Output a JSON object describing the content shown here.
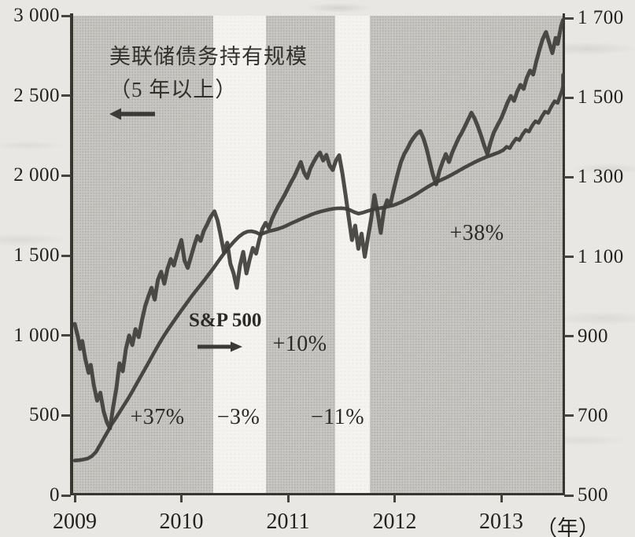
{
  "chart_data": {
    "type": "line",
    "title_annotation": {
      "line1": "美联储债务持有规模",
      "line2": "（5 年以上）"
    },
    "sp_label": "S&P 500",
    "x_axis": {
      "tick_values": [
        2009,
        2010,
        2011,
        2012,
        2013
      ],
      "tick_labels": [
        "2009",
        "2010",
        "2011",
        "2012",
        "2013"
      ],
      "unit_label": "（年）",
      "range": [
        2009,
        2013.6
      ]
    },
    "left_axis": {
      "tick_values": [
        3000,
        2500,
        2000,
        1500,
        1000,
        500,
        0
      ],
      "tick_labels": [
        "3 000",
        "2 500",
        "2 000",
        "1 500",
        "1 000",
        "500",
        "0"
      ],
      "range": [
        0,
        3000
      ]
    },
    "right_axis": {
      "tick_values": [
        1700,
        1500,
        1300,
        1100,
        900,
        700,
        500
      ],
      "tick_labels": [
        "1 700",
        "1 500",
        "1 300",
        "1 100",
        "900",
        "700",
        "500"
      ],
      "range": [
        500,
        1700
      ]
    },
    "white_gap_bands": [
      [
        2010.3,
        2010.79
      ],
      [
        2011.44,
        2011.77
      ]
    ],
    "annotations": {
      "qe1": "+37%",
      "gap1": "−3%",
      "qe2": "+10%",
      "gap2": "−11%",
      "qe3": "+38%"
    },
    "colors": {
      "line": "#3f3e3b",
      "band_gray": "#c8c7c3",
      "band_white": "#f4f3ef",
      "page_bg": "#e8e7e3",
      "ink": "#232220"
    },
    "series": [
      {
        "id": "fed",
        "name": "美联储债务持有规模（5年以上）",
        "axis": "left",
        "points": [
          [
            2009.0,
            218
          ],
          [
            2009.04,
            220
          ],
          [
            2009.08,
            224
          ],
          [
            2009.12,
            230
          ],
          [
            2009.16,
            245
          ],
          [
            2009.2,
            272
          ],
          [
            2009.24,
            318
          ],
          [
            2009.28,
            365
          ],
          [
            2009.31,
            400
          ],
          [
            2009.34,
            438
          ],
          [
            2009.38,
            478
          ],
          [
            2009.42,
            520
          ],
          [
            2009.46,
            562
          ],
          [
            2009.5,
            605
          ],
          [
            2009.54,
            650
          ],
          [
            2009.58,
            698
          ],
          [
            2009.62,
            745
          ],
          [
            2009.66,
            792
          ],
          [
            2009.7,
            840
          ],
          [
            2009.74,
            888
          ],
          [
            2009.78,
            935
          ],
          [
            2009.82,
            980
          ],
          [
            2009.86,
            1022
          ],
          [
            2009.9,
            1062
          ],
          [
            2009.94,
            1100
          ],
          [
            2009.98,
            1138
          ],
          [
            2010.02,
            1175
          ],
          [
            2010.06,
            1212
          ],
          [
            2010.1,
            1248
          ],
          [
            2010.14,
            1283
          ],
          [
            2010.18,
            1316
          ],
          [
            2010.22,
            1350
          ],
          [
            2010.26,
            1385
          ],
          [
            2010.3,
            1420
          ],
          [
            2010.34,
            1458
          ],
          [
            2010.38,
            1495
          ],
          [
            2010.42,
            1530
          ],
          [
            2010.46,
            1562
          ],
          [
            2010.5,
            1592
          ],
          [
            2010.54,
            1618
          ],
          [
            2010.58,
            1638
          ],
          [
            2010.62,
            1650
          ],
          [
            2010.66,
            1652
          ],
          [
            2010.7,
            1645
          ],
          [
            2010.74,
            1632
          ],
          [
            2010.78,
            1642
          ],
          [
            2010.82,
            1652
          ],
          [
            2010.86,
            1658
          ],
          [
            2010.9,
            1665
          ],
          [
            2010.94,
            1674
          ],
          [
            2010.98,
            1685
          ],
          [
            2011.02,
            1698
          ],
          [
            2011.06,
            1710
          ],
          [
            2011.1,
            1722
          ],
          [
            2011.14,
            1734
          ],
          [
            2011.18,
            1745
          ],
          [
            2011.22,
            1756
          ],
          [
            2011.26,
            1766
          ],
          [
            2011.3,
            1774
          ],
          [
            2011.34,
            1781
          ],
          [
            2011.38,
            1787
          ],
          [
            2011.42,
            1792
          ],
          [
            2011.46,
            1795
          ],
          [
            2011.5,
            1796
          ],
          [
            2011.54,
            1793
          ],
          [
            2011.58,
            1785
          ],
          [
            2011.62,
            1772
          ],
          [
            2011.66,
            1762
          ],
          [
            2011.7,
            1768
          ],
          [
            2011.74,
            1777
          ],
          [
            2011.78,
            1785
          ],
          [
            2011.82,
            1791
          ],
          [
            2011.86,
            1796
          ],
          [
            2011.9,
            1801
          ],
          [
            2011.94,
            1807
          ],
          [
            2011.98,
            1813
          ],
          [
            2012.02,
            1822
          ],
          [
            2012.06,
            1833
          ],
          [
            2012.1,
            1846
          ],
          [
            2012.14,
            1860
          ],
          [
            2012.18,
            1875
          ],
          [
            2012.22,
            1891
          ],
          [
            2012.26,
            1908
          ],
          [
            2012.3,
            1925
          ],
          [
            2012.34,
            1941
          ],
          [
            2012.38,
            1955
          ],
          [
            2012.42,
            1968
          ],
          [
            2012.46,
            1980
          ],
          [
            2012.5,
            1993
          ],
          [
            2012.54,
            2007
          ],
          [
            2012.58,
            2022
          ],
          [
            2012.62,
            2037
          ],
          [
            2012.66,
            2052
          ],
          [
            2012.7,
            2066
          ],
          [
            2012.74,
            2080
          ],
          [
            2012.78,
            2093
          ],
          [
            2012.82,
            2105
          ],
          [
            2012.86,
            2116
          ],
          [
            2012.9,
            2126
          ],
          [
            2012.94,
            2136
          ],
          [
            2012.98,
            2146
          ],
          [
            2013.02,
            2160
          ],
          [
            2013.05,
            2180
          ],
          [
            2013.08,
            2172
          ],
          [
            2013.11,
            2205
          ],
          [
            2013.14,
            2232
          ],
          [
            2013.17,
            2222
          ],
          [
            2013.2,
            2258
          ],
          [
            2013.23,
            2285
          ],
          [
            2013.26,
            2275
          ],
          [
            2013.29,
            2312
          ],
          [
            2013.32,
            2340
          ],
          [
            2013.35,
            2330
          ],
          [
            2013.38,
            2368
          ],
          [
            2013.41,
            2400
          ],
          [
            2013.44,
            2392
          ],
          [
            2013.47,
            2432
          ],
          [
            2013.5,
            2465
          ],
          [
            2013.53,
            2455
          ],
          [
            2013.55,
            2495
          ],
          [
            2013.57,
            2530
          ],
          [
            2013.59,
            2560
          ],
          [
            2013.6,
            2630
          ]
        ]
      },
      {
        "id": "sp500",
        "name": "S&P 500",
        "axis": "right",
        "points": [
          [
            2009.0,
            931
          ],
          [
            2009.03,
            898
          ],
          [
            2009.05,
            868
          ],
          [
            2009.07,
            888
          ],
          [
            2009.1,
            842
          ],
          [
            2009.13,
            808
          ],
          [
            2009.15,
            828
          ],
          [
            2009.18,
            775
          ],
          [
            2009.21,
            738
          ],
          [
            2009.24,
            758
          ],
          [
            2009.27,
            712
          ],
          [
            2009.3,
            685
          ],
          [
            2009.33,
            668
          ],
          [
            2009.36,
            722
          ],
          [
            2009.39,
            768
          ],
          [
            2009.42,
            832
          ],
          [
            2009.45,
            812
          ],
          [
            2009.48,
            868
          ],
          [
            2009.51,
            902
          ],
          [
            2009.54,
            878
          ],
          [
            2009.57,
            918
          ],
          [
            2009.6,
            898
          ],
          [
            2009.63,
            940
          ],
          [
            2009.66,
            975
          ],
          [
            2009.69,
            1000
          ],
          [
            2009.72,
            1022
          ],
          [
            2009.75,
            992
          ],
          [
            2009.78,
            1042
          ],
          [
            2009.81,
            1062
          ],
          [
            2009.84,
            1032
          ],
          [
            2009.87,
            1070
          ],
          [
            2009.9,
            1094
          ],
          [
            2009.93,
            1078
          ],
          [
            2009.96,
            1108
          ],
          [
            2010.0,
            1142
          ],
          [
            2010.03,
            1090
          ],
          [
            2010.06,
            1072
          ],
          [
            2010.09,
            1100
          ],
          [
            2010.12,
            1128
          ],
          [
            2010.15,
            1152
          ],
          [
            2010.18,
            1140
          ],
          [
            2010.21,
            1165
          ],
          [
            2010.24,
            1180
          ],
          [
            2010.27,
            1198
          ],
          [
            2010.31,
            1214
          ],
          [
            2010.34,
            1190
          ],
          [
            2010.37,
            1152
          ],
          [
            2010.4,
            1110
          ],
          [
            2010.43,
            1135
          ],
          [
            2010.46,
            1082
          ],
          [
            2010.49,
            1058
          ],
          [
            2010.52,
            1022
          ],
          [
            2010.55,
            1078
          ],
          [
            2010.58,
            1112
          ],
          [
            2010.61,
            1058
          ],
          [
            2010.64,
            1092
          ],
          [
            2010.67,
            1122
          ],
          [
            2010.7,
            1108
          ],
          [
            2010.73,
            1142
          ],
          [
            2010.76,
            1170
          ],
          [
            2010.79,
            1185
          ],
          [
            2010.82,
            1172
          ],
          [
            2010.85,
            1195
          ],
          [
            2010.88,
            1212
          ],
          [
            2010.91,
            1228
          ],
          [
            2010.94,
            1242
          ],
          [
            2010.97,
            1256
          ],
          [
            2011.0,
            1272
          ],
          [
            2011.03,
            1288
          ],
          [
            2011.06,
            1302
          ],
          [
            2011.09,
            1320
          ],
          [
            2011.12,
            1338
          ],
          [
            2011.15,
            1312
          ],
          [
            2011.18,
            1298
          ],
          [
            2011.21,
            1322
          ],
          [
            2011.24,
            1338
          ],
          [
            2011.27,
            1352
          ],
          [
            2011.3,
            1362
          ],
          [
            2011.33,
            1342
          ],
          [
            2011.36,
            1356
          ],
          [
            2011.39,
            1330
          ],
          [
            2011.42,
            1318
          ],
          [
            2011.45,
            1342
          ],
          [
            2011.48,
            1355
          ],
          [
            2011.51,
            1310
          ],
          [
            2011.54,
            1255
          ],
          [
            2011.57,
            1198
          ],
          [
            2011.6,
            1142
          ],
          [
            2011.63,
            1178
          ],
          [
            2011.66,
            1120
          ],
          [
            2011.69,
            1158
          ],
          [
            2011.72,
            1100
          ],
          [
            2011.75,
            1148
          ],
          [
            2011.78,
            1195
          ],
          [
            2011.81,
            1255
          ],
          [
            2011.84,
            1212
          ],
          [
            2011.87,
            1160
          ],
          [
            2011.9,
            1218
          ],
          [
            2011.93,
            1242
          ],
          [
            2011.96,
            1232
          ],
          [
            2012.0,
            1278
          ],
          [
            2012.03,
            1310
          ],
          [
            2012.06,
            1338
          ],
          [
            2012.09,
            1358
          ],
          [
            2012.12,
            1372
          ],
          [
            2012.15,
            1388
          ],
          [
            2012.18,
            1400
          ],
          [
            2012.21,
            1410
          ],
          [
            2012.24,
            1416
          ],
          [
            2012.27,
            1398
          ],
          [
            2012.3,
            1372
          ],
          [
            2012.33,
            1338
          ],
          [
            2012.36,
            1305
          ],
          [
            2012.39,
            1282
          ],
          [
            2012.42,
            1315
          ],
          [
            2012.45,
            1338
          ],
          [
            2012.48,
            1358
          ],
          [
            2012.51,
            1338
          ],
          [
            2012.54,
            1362
          ],
          [
            2012.57,
            1380
          ],
          [
            2012.6,
            1398
          ],
          [
            2012.63,
            1412
          ],
          [
            2012.66,
            1428
          ],
          [
            2012.69,
            1445
          ],
          [
            2012.72,
            1462
          ],
          [
            2012.75,
            1448
          ],
          [
            2012.78,
            1428
          ],
          [
            2012.81,
            1405
          ],
          [
            2012.84,
            1380
          ],
          [
            2012.87,
            1358
          ],
          [
            2012.9,
            1388
          ],
          [
            2012.93,
            1412
          ],
          [
            2012.96,
            1428
          ],
          [
            2013.0,
            1448
          ],
          [
            2013.03,
            1468
          ],
          [
            2013.06,
            1488
          ],
          [
            2013.09,
            1504
          ],
          [
            2013.12,
            1492
          ],
          [
            2013.15,
            1515
          ],
          [
            2013.18,
            1532
          ],
          [
            2013.21,
            1522
          ],
          [
            2013.24,
            1550
          ],
          [
            2013.27,
            1568
          ],
          [
            2013.3,
            1558
          ],
          [
            2013.33,
            1592
          ],
          [
            2013.36,
            1622
          ],
          [
            2013.39,
            1648
          ],
          [
            2013.42,
            1665
          ],
          [
            2013.45,
            1638
          ],
          [
            2013.48,
            1612
          ],
          [
            2013.51,
            1650
          ],
          [
            2013.53,
            1635
          ],
          [
            2013.56,
            1678
          ],
          [
            2013.6,
            1695
          ]
        ]
      }
    ]
  }
}
